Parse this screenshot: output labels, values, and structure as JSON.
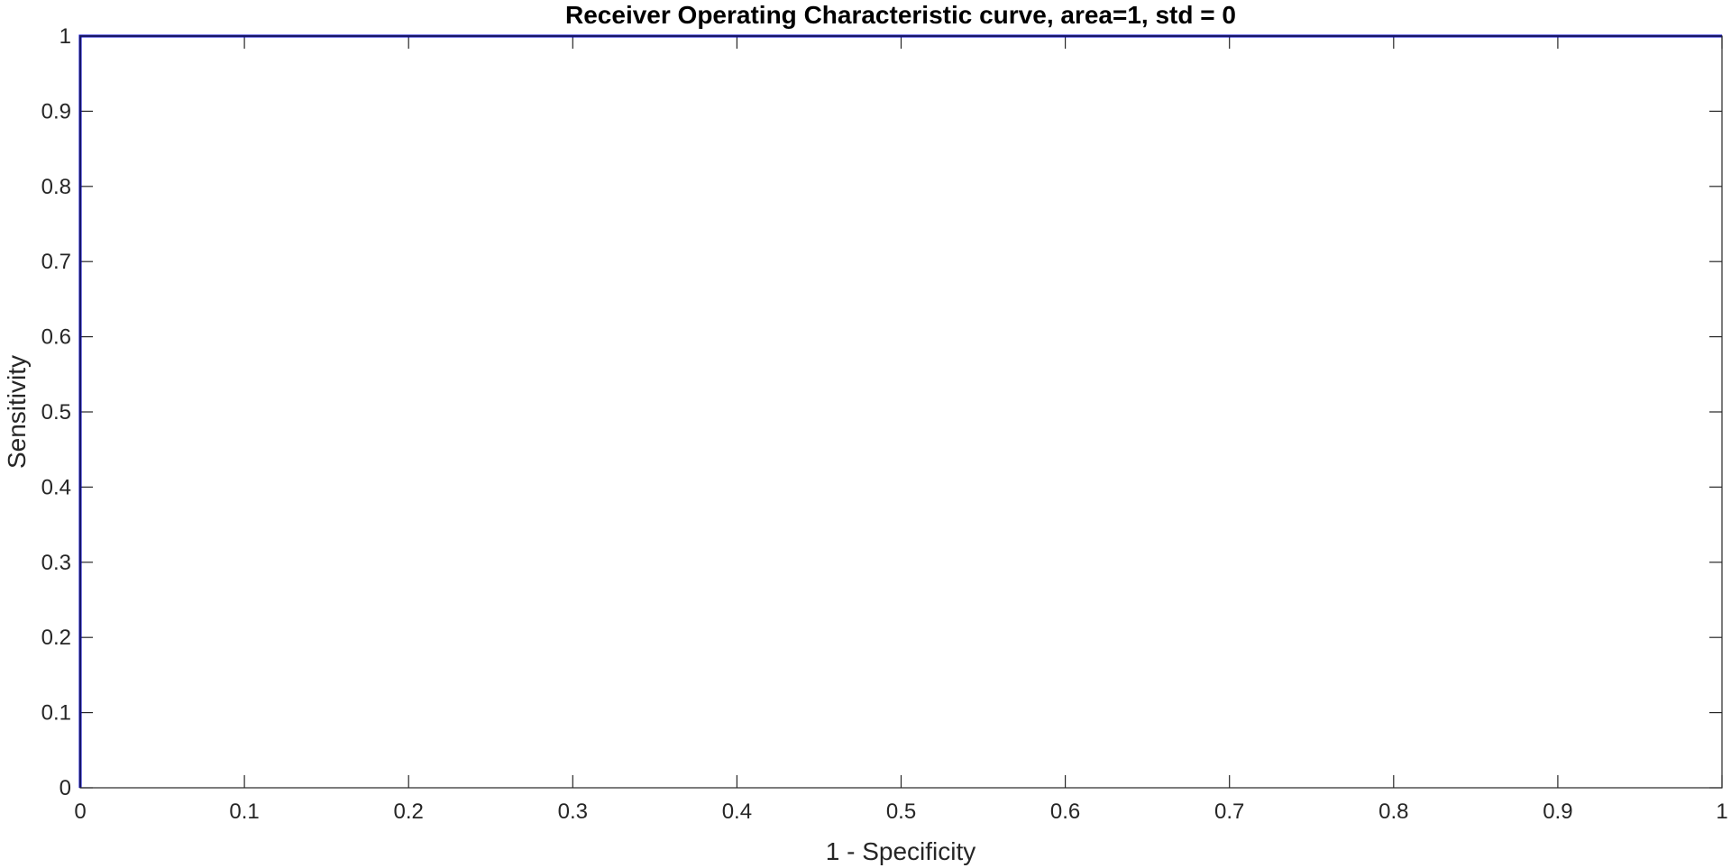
{
  "chart_data": {
    "type": "line",
    "title": "Receiver Operating Characteristic curve, area=1, std = 0",
    "xlabel": "1 - Specificity",
    "ylabel": "Sensitivity",
    "xlim": [
      0,
      1
    ],
    "ylim": [
      0,
      1
    ],
    "xticks": [
      0,
      0.1,
      0.2,
      0.3,
      0.4,
      0.5,
      0.6,
      0.7,
      0.8,
      0.9,
      1
    ],
    "yticks": [
      0,
      0.1,
      0.2,
      0.3,
      0.4,
      0.5,
      0.6,
      0.7,
      0.8,
      0.9,
      1
    ],
    "grid": false,
    "series": [
      {
        "color": "#0000cc",
        "x": [
          0,
          0,
          1
        ],
        "y": [
          0,
          1,
          1
        ]
      }
    ]
  }
}
